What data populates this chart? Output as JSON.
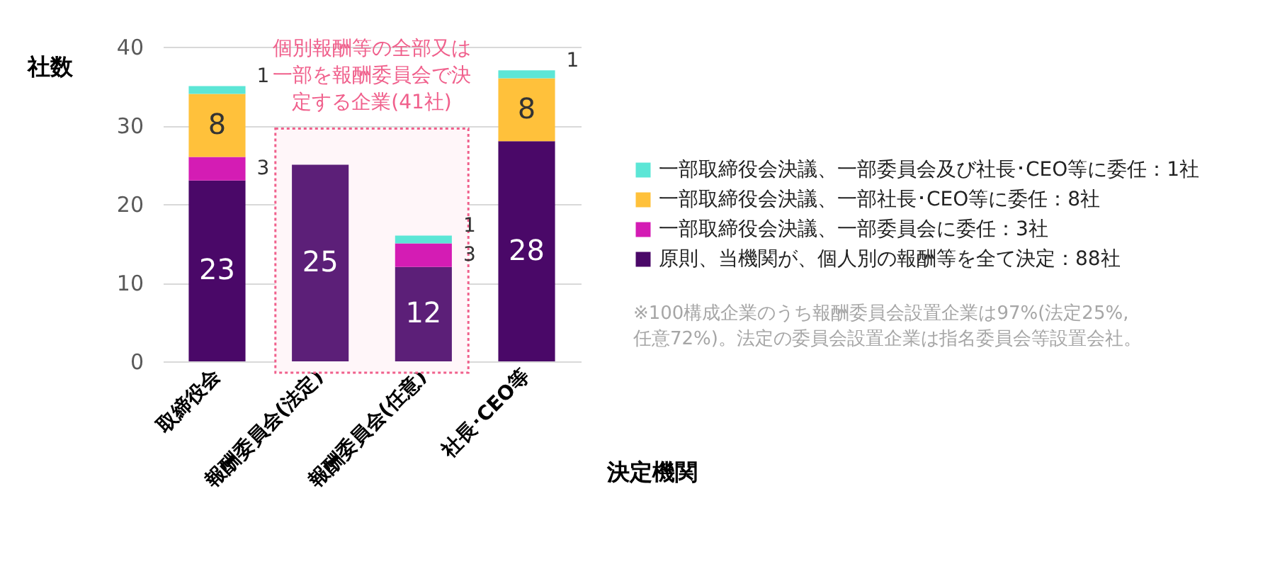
{
  "chart_data": {
    "type": "bar",
    "stacked": true,
    "ylabel": "社数",
    "xlabel": "決定機関",
    "categories": [
      "取締役会",
      "報酬委員会(法定)",
      "報酬委員会(任意)",
      "社長･CEO等"
    ],
    "series": [
      {
        "name": "原則、当機関が、個人別の報酬等を全て決定：88社",
        "color": "#4a0868",
        "colors": [
          "#4a0868",
          "#5c1f78",
          "#5c1f78",
          "#4a0868"
        ],
        "values": [
          23,
          25,
          12,
          28
        ]
      },
      {
        "name": "一部取締役会決議、一部委員会に委任：3社",
        "color": "#d41cb4",
        "values": [
          3,
          null,
          3,
          null
        ]
      },
      {
        "name": "一部取締役会決議、一部社長･CEO等に委任：8社",
        "color": "#ffc13b",
        "values": [
          8,
          null,
          null,
          8
        ]
      },
      {
        "name": "一部取締役会決議、一部委員会及び社長･CEO等に委任：1社",
        "color": "#5ce6d6",
        "values": [
          1,
          null,
          1,
          1
        ]
      }
    ],
    "ylim": [
      0,
      40
    ],
    "yticks": [
      0,
      10,
      20,
      30,
      40
    ],
    "grid": "y",
    "legend": "right",
    "data_labels": true,
    "bands": [
      {
        "axis": "x",
        "from": "報酬委員会(法定)",
        "to": "報酬委員会(任意)",
        "label": "個別報酬等の全部又は一部を報酬委員会で決定する企業(41社)",
        "color": "#f0608c"
      }
    ],
    "annotations": [
      "※100構成企業のうち報酬委員会設置企業は97%(法定25%, 任意72%)。法定の委員会設置企業は指名委員会等設置会社。"
    ]
  }
}
